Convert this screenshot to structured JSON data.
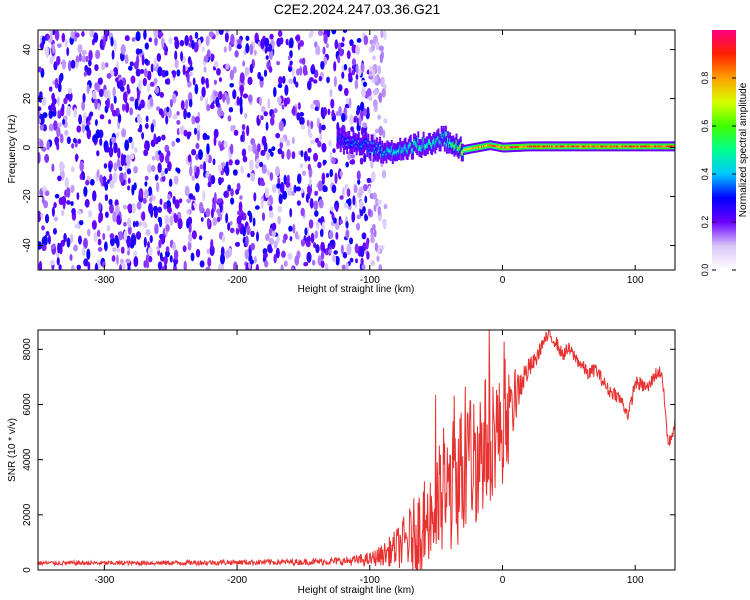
{
  "title": "C2E2.2024.247.03.36.G21",
  "chart_data": [
    {
      "type": "heatmap",
      "title": "C2E2.2024.247.03.36.G21",
      "xlabel": "Height of straight line (km)",
      "ylabel": "Frequency (Hz)",
      "xlim": [
        -350,
        130
      ],
      "ylim": [
        -50,
        48
      ],
      "xticks": [
        -300,
        -200,
        -100,
        0,
        100
      ],
      "yticks": [
        -40,
        -20,
        0,
        20,
        40
      ],
      "noise_region_x": [
        -350,
        -100
      ],
      "signal_trace": {
        "x": [
          -125,
          -115,
          -105,
          -95,
          -85,
          -75,
          -65,
          -55,
          -45,
          -40,
          -35,
          -30,
          -20,
          -10,
          0,
          20,
          50,
          80,
          110,
          130
        ],
        "frequency": [
          3,
          2,
          1,
          -1,
          -2,
          0,
          1,
          2,
          4,
          2,
          0,
          -1,
          0,
          1,
          0,
          0.5,
          0.5,
          0.5,
          0.5,
          0.5
        ],
        "amplitude": [
          0.35,
          0.4,
          0.4,
          0.45,
          0.5,
          0.5,
          0.55,
          0.55,
          0.5,
          0.6,
          0.7,
          0.8,
          0.9,
          0.9,
          0.95,
          0.95,
          0.95,
          0.95,
          0.95,
          0.95
        ]
      },
      "colorbar": {
        "label": "Normalized spectral amplitude",
        "range": [
          0,
          1
        ],
        "ticks": [
          "0.0",
          "0.2",
          "0.4",
          "0.6",
          "0.8"
        ]
      },
      "grid": false
    },
    {
      "type": "line",
      "xlabel": "Height of straight line (km)",
      "ylabel": "SNR (10 * v/v)",
      "xlim": [
        -350,
        130
      ],
      "ylim": [
        0,
        8700
      ],
      "xticks": [
        -300,
        -200,
        -100,
        0,
        100
      ],
      "yticks": [
        0,
        2000,
        4000,
        6000,
        8000
      ],
      "color": "#e8302e",
      "series": [
        {
          "x": [
            -350,
            -300,
            -250,
            -200,
            -150,
            -120,
            -100,
            -90,
            -80,
            -70,
            -60,
            -50,
            -40,
            -30,
            -20,
            -10,
            -5,
            0,
            5,
            10,
            15,
            20,
            25,
            30,
            35,
            40,
            45,
            50,
            55,
            60,
            65,
            70,
            75,
            80,
            85,
            90,
            95,
            100,
            105,
            110,
            115,
            120,
            125,
            130
          ],
          "y": [
            250,
            250,
            260,
            280,
            290,
            320,
            380,
            550,
            800,
            1100,
            1600,
            2200,
            2900,
            3600,
            4200,
            4800,
            5100,
            4900,
            5300,
            6300,
            6900,
            7300,
            7600,
            8200,
            8500,
            8300,
            7800,
            8000,
            7700,
            7400,
            7100,
            7300,
            6900,
            6500,
            6400,
            6100,
            5600,
            6800,
            6700,
            6600,
            7100,
            7200,
            4500,
            5300
          ],
          "noise_amplitude": [
            80,
            80,
            90,
            100,
            110,
            150,
            250,
            400,
            700,
            1200,
            1700,
            2200,
            2400,
            2600,
            2600,
            2400,
            2200,
            1800,
            1400,
            900,
            600,
            400,
            300,
            250,
            250,
            250,
            250,
            250,
            250,
            250,
            250,
            250,
            250,
            250,
            250,
            250,
            250,
            250,
            250,
            250,
            250,
            250,
            250,
            250
          ]
        }
      ],
      "grid": false
    }
  ]
}
